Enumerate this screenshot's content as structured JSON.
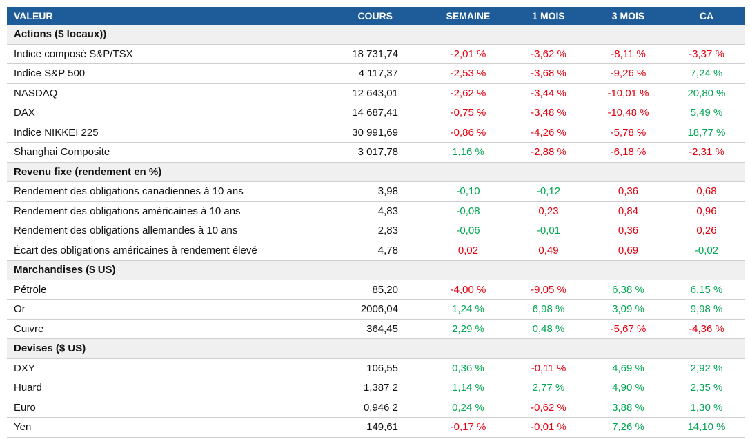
{
  "header": [
    "VALEUR",
    "COURS",
    "SEMAINE",
    "1 MOIS",
    "3 MOIS",
    "CA"
  ],
  "sections": [
    {
      "title": "Actions ($ locaux))",
      "rows": [
        {
          "name": "Indice composé S&P/TSX",
          "cells": [
            "18 731,74",
            "-2,01 %",
            "-3,62 %",
            "-8,11 %",
            "-3,37 %"
          ],
          "colors": [
            "#e3000f",
            "#e3000f",
            "#e3000f",
            "#e3000f"
          ]
        },
        {
          "name": "Indice S&P 500",
          "cells": [
            "4 117,37",
            "-2,53 %",
            "-3,68 %",
            "-9,26 %",
            "7,24 %"
          ],
          "colors": [
            "#e3000f",
            "#e3000f",
            "#e3000f",
            "#00a651"
          ]
        },
        {
          "name": "NASDAQ",
          "cells": [
            "12 643,01",
            "-2,62 %",
            "-3,44 %",
            "-10,01 %",
            "20,80 %"
          ],
          "colors": [
            "#e3000f",
            "#e3000f",
            "#e3000f",
            "#00a651"
          ]
        },
        {
          "name": "DAX",
          "cells": [
            "14 687,41",
            "-0,75 %",
            "-3,48 %",
            "-10,48 %",
            "5,49 %"
          ],
          "colors": [
            "#e3000f",
            "#e3000f",
            "#e3000f",
            "#00a651"
          ]
        },
        {
          "name": "Indice NIKKEI 225",
          "cells": [
            "30 991,69",
            "-0,86 %",
            "-4,26 %",
            "-5,78 %",
            "18,77 %"
          ],
          "colors": [
            "#e3000f",
            "#e3000f",
            "#e3000f",
            "#00a651"
          ]
        },
        {
          "name": "Shanghai Composite",
          "cells": [
            "3 017,78",
            "1,16 %",
            "-2,88 %",
            "-6,18 %",
            "-2,31 %"
          ],
          "colors": [
            "#00a651",
            "#e3000f",
            "#e3000f",
            "#e3000f"
          ]
        }
      ]
    },
    {
      "title": "Revenu fixe (rendement en %)",
      "rows": [
        {
          "name": "Rendement des obligations canadiennes à 10 ans",
          "cells": [
            "3,98",
            "-0,10",
            "-0,12",
            "0,36",
            "0,68"
          ],
          "colors": [
            "#00a651",
            "#00a651",
            "#e3000f",
            "#e3000f"
          ]
        },
        {
          "name": "Rendement des obligations américaines à 10 ans",
          "cells": [
            "4,83",
            "-0,08",
            "0,23",
            "0,84",
            "0,96"
          ],
          "colors": [
            "#00a651",
            "#e3000f",
            "#e3000f",
            "#e3000f"
          ]
        },
        {
          "name": "Rendement des obligations allemandes à 10 ans",
          "cells": [
            "2,83",
            "-0,06",
            "-0,01",
            "0,36",
            "0,26"
          ],
          "colors": [
            "#00a651",
            "#00a651",
            "#e3000f",
            "#e3000f"
          ]
        },
        {
          "name": "Écart des obligations américaines à rendement élevé",
          "cells": [
            "4,78",
            "0,02",
            "0,49",
            "0,69",
            "-0,02"
          ],
          "colors": [
            "#e3000f",
            "#e3000f",
            "#e3000f",
            "#00a651"
          ]
        }
      ]
    },
    {
      "title": "Marchandises ($ US)",
      "rows": [
        {
          "name": "Pétrole",
          "cells": [
            "85,20",
            "-4,00 %",
            "-9,05 %",
            "6,38 %",
            "6,15 %"
          ],
          "colors": [
            "#e3000f",
            "#e3000f",
            "#00a651",
            "#00a651"
          ]
        },
        {
          "name": "Or",
          "cells": [
            "2006,04",
            "1,24 %",
            "6,98 %",
            "3,09 %",
            "9,98 %"
          ],
          "colors": [
            "#00a651",
            "#00a651",
            "#00a651",
            "#00a651"
          ]
        },
        {
          "name": "Cuivre",
          "cells": [
            "364,45",
            "2,29 %",
            "0,48 %",
            "-5,67 %",
            "-4,36 %"
          ],
          "colors": [
            "#00a651",
            "#00a651",
            "#e3000f",
            "#e3000f"
          ]
        }
      ]
    },
    {
      "title": "Devises ($ US)",
      "rows": [
        {
          "name": "DXY",
          "cells": [
            "106,55",
            "0,36 %",
            "-0,11 %",
            "4,69 %",
            "2,92 %"
          ],
          "colors": [
            "#00a651",
            "#e3000f",
            "#00a651",
            "#00a651"
          ]
        },
        {
          "name": "Huard",
          "cells": [
            "1,387 2",
            "1,14 %",
            "2,77 %",
            "4,90 %",
            "2,35 %"
          ],
          "colors": [
            "#00a651",
            "#00a651",
            "#00a651",
            "#00a651"
          ]
        },
        {
          "name": "Euro",
          "cells": [
            "0,946 2",
            "0,24 %",
            "-0,62 %",
            "3,88 %",
            "1,30 %"
          ],
          "colors": [
            "#00a651",
            "#e3000f",
            "#00a651",
            "#00a651"
          ]
        },
        {
          "name": "Yen",
          "cells": [
            "149,61",
            "-0,17 %",
            "-0,01 %",
            "7,26 %",
            "14,10 %"
          ],
          "colors": [
            "#e3000f",
            "#e3000f",
            "#00a651",
            "#00a651"
          ]
        }
      ]
    }
  ]
}
